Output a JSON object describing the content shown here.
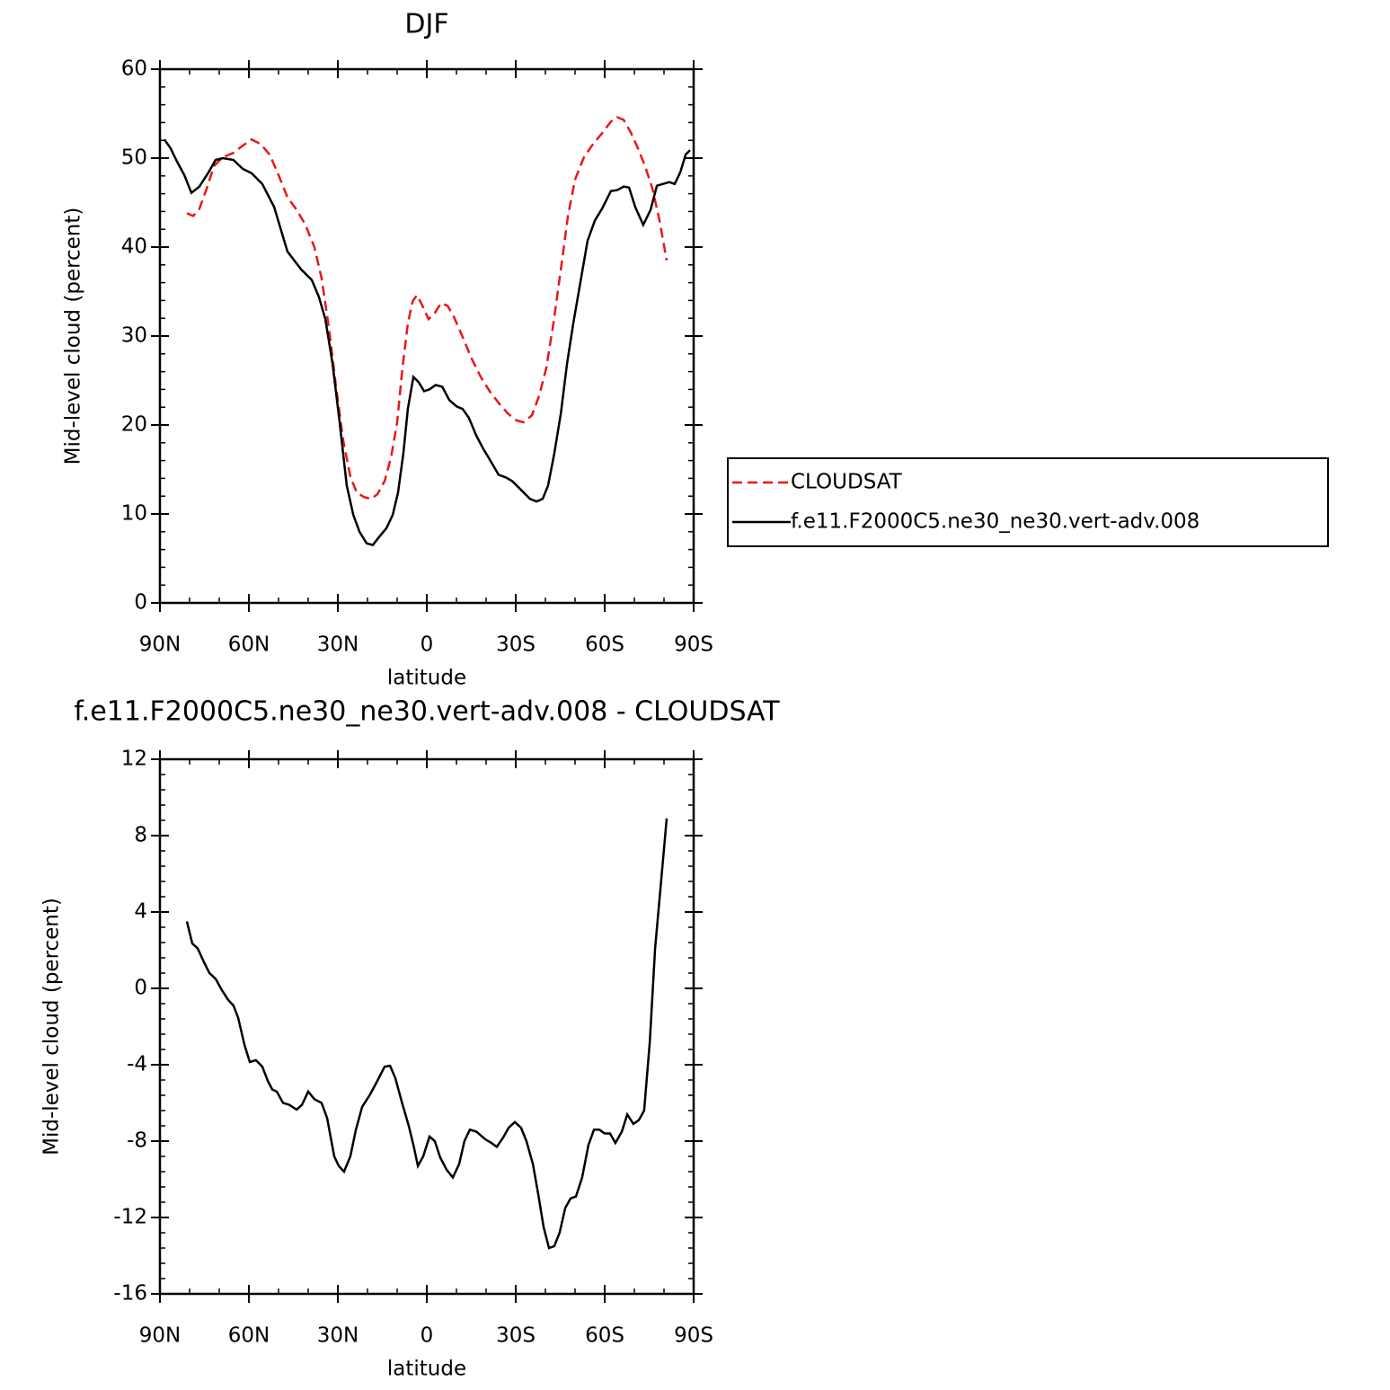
{
  "chart_data": [
    {
      "type": "line",
      "title": "DJF",
      "xlabel": "latitude",
      "ylabel": "Mid-level cloud (percent)",
      "xlim": [
        90,
        -90
      ],
      "xticks": [
        {
          "value": 90,
          "label": "90N"
        },
        {
          "value": 60,
          "label": "60N"
        },
        {
          "value": 30,
          "label": "30N"
        },
        0,
        {
          "value": -30,
          "label": "30S"
        },
        {
          "value": -60,
          "label": "60S"
        },
        {
          "value": -90,
          "label": "90S"
        }
      ],
      "ylim": [
        0,
        60
      ],
      "yticks": [
        0,
        10,
        20,
        30,
        40,
        50,
        60
      ],
      "grid": false,
      "legend": "right",
      "series": [
        {
          "name": "CLOUDSAT",
          "color": "#e8171a",
          "dash": "dashed",
          "x": [
            80.9,
            78.8,
            76.7,
            74.2,
            71.8,
            68.8,
            65.2,
            62.1,
            59.1,
            56.1,
            53.0,
            50.0,
            47.0,
            43.9,
            40.9,
            37.9,
            35.5,
            33.0,
            30.6,
            28.2,
            25.8,
            23.6,
            21.2,
            18.8,
            16.7,
            14.2,
            12.1,
            10.0,
            8.2,
            6.4,
            4.8,
            3.3,
            1.5,
            -0.6,
            -2.7,
            -4.8,
            -7.0,
            -9.1,
            -12.1,
            -15.2,
            -18.2,
            -21.2,
            -24.2,
            -27.3,
            -30.3,
            -32.7,
            -35.5,
            -37.9,
            -40.3,
            -42.7,
            -45.2,
            -47.6,
            -50.0,
            -53.0,
            -56.1,
            -59.1,
            -62.1,
            -64.2,
            -66.4,
            -68.8,
            -71.2,
            -73.6,
            -76.1,
            -78.5,
            -80.9
          ],
          "values": [
            43.8,
            43.5,
            44.3,
            46.6,
            49.1,
            50.1,
            50.6,
            51.4,
            52.1,
            51.6,
            50.4,
            48.1,
            45.6,
            44.2,
            42.5,
            40.0,
            36.5,
            30.9,
            24.3,
            18.3,
            14.2,
            12.4,
            11.9,
            11.7,
            12.2,
            13.7,
            16.3,
            20.3,
            26.4,
            31.4,
            33.9,
            34.6,
            33.4,
            31.9,
            32.6,
            33.7,
            33.4,
            32.2,
            29.9,
            27.4,
            25.4,
            23.8,
            22.5,
            21.3,
            20.5,
            20.3,
            21.1,
            23.3,
            26.4,
            31.4,
            37.5,
            43.5,
            47.6,
            50.1,
            51.6,
            52.8,
            54.1,
            54.6,
            54.3,
            52.9,
            51.1,
            49.1,
            46.6,
            43.0,
            38.5
          ]
        },
        {
          "name": "f.e11.F2000C5.ne30_ne30.vert-adv.008",
          "color": "#000000",
          "dash": "solid",
          "x": [
            88.5,
            86.4,
            84.2,
            81.8,
            79.4,
            76.7,
            73.6,
            71.2,
            68.8,
            65.2,
            62.1,
            59.1,
            55.5,
            51.5,
            47.0,
            42.4,
            38.8,
            36.4,
            34.2,
            31.8,
            29.4,
            27.0,
            24.8,
            22.7,
            20.3,
            18.2,
            16.1,
            13.6,
            11.5,
            9.7,
            7.9,
            6.4,
            4.5,
            2.7,
            0.9,
            -0.9,
            -3.0,
            -5.2,
            -7.6,
            -10.0,
            -12.1,
            -14.2,
            -16.7,
            -19.1,
            -21.8,
            -24.2,
            -26.7,
            -28.8,
            -31.2,
            -34.8,
            -37.0,
            -39.1,
            -40.9,
            -43.0,
            -45.2,
            -47.3,
            -49.4,
            -51.5,
            -54.2,
            -56.7,
            -59.1,
            -62.1,
            -64.2,
            -66.4,
            -68.2,
            -70.3,
            -73.0,
            -75.5,
            -77.6,
            -79.7,
            -81.8,
            -83.6,
            -85.5,
            -87.3,
            -88.8
          ],
          "values": [
            52.1,
            51.1,
            49.6,
            48.1,
            46.1,
            46.8,
            48.4,
            49.8,
            50.0,
            49.8,
            48.8,
            48.3,
            47.1,
            44.5,
            39.5,
            37.5,
            36.3,
            34.4,
            31.9,
            26.9,
            20.3,
            13.2,
            9.9,
            8.0,
            6.7,
            6.5,
            7.4,
            8.4,
            9.9,
            12.4,
            16.8,
            21.8,
            25.4,
            24.8,
            23.8,
            24.0,
            24.5,
            24.3,
            22.8,
            22.1,
            21.8,
            20.8,
            18.8,
            17.3,
            15.8,
            14.4,
            14.1,
            13.7,
            12.9,
            11.7,
            11.4,
            11.7,
            13.2,
            16.8,
            21.3,
            26.9,
            31.4,
            35.5,
            40.7,
            43.0,
            44.3,
            46.3,
            46.4,
            46.8,
            46.7,
            44.5,
            42.5,
            44.2,
            46.9,
            47.1,
            47.3,
            47.1,
            48.4,
            50.4,
            50.9
          ]
        }
      ]
    },
    {
      "type": "line",
      "title": "f.e11.F2000C5.ne30_ne30.vert-adv.008 - CLOUDSAT",
      "xlabel": "latitude",
      "ylabel": "Mid-level cloud (percent)",
      "xlim": [
        90,
        -90
      ],
      "xticks": [
        {
          "value": 90,
          "label": "90N"
        },
        {
          "value": 60,
          "label": "60N"
        },
        {
          "value": 30,
          "label": "30N"
        },
        0,
        {
          "value": -30,
          "label": "30S"
        },
        {
          "value": -60,
          "label": "60S"
        },
        {
          "value": -90,
          "label": "90S"
        }
      ],
      "ylim": [
        -16,
        12
      ],
      "yticks": [
        -16,
        -12,
        -8,
        -4,
        0,
        4,
        8,
        12
      ],
      "grid": false,
      "series": [
        {
          "color": "#000000",
          "dash": "solid",
          "x": [
            80.9,
            79.1,
            77.3,
            75.2,
            73.3,
            71.2,
            69.1,
            67.0,
            65.2,
            63.6,
            61.5,
            59.7,
            57.6,
            55.5,
            53.6,
            52.1,
            50.6,
            48.5,
            46.4,
            43.9,
            42.1,
            40.0,
            37.9,
            35.5,
            33.6,
            31.2,
            29.7,
            27.9,
            25.8,
            23.9,
            21.8,
            19.1,
            16.7,
            14.2,
            12.4,
            10.6,
            8.5,
            6.1,
            4.5,
            3.0,
            1.2,
            -0.9,
            -2.7,
            -4.5,
            -6.7,
            -8.8,
            -10.9,
            -12.7,
            -14.5,
            -16.7,
            -19.7,
            -21.8,
            -23.6,
            -25.8,
            -27.6,
            -29.7,
            -31.8,
            -33.6,
            -35.8,
            -37.6,
            -39.4,
            -41.2,
            -43.0,
            -44.8,
            -46.7,
            -48.5,
            -50.3,
            -52.4,
            -54.5,
            -56.4,
            -58.2,
            -60.0,
            -61.8,
            -63.6,
            -65.8,
            -67.6,
            -69.7,
            -71.5,
            -73.3,
            -75.2,
            -77.0,
            -78.8,
            -80.9
          ],
          "values": [
            3.5,
            2.35,
            2.1,
            1.4,
            0.8,
            0.5,
            -0.1,
            -0.6,
            -0.9,
            -1.55,
            -2.96,
            -3.86,
            -3.76,
            -4.1,
            -4.85,
            -5.3,
            -5.4,
            -6.0,
            -6.1,
            -6.35,
            -6.1,
            -5.4,
            -5.8,
            -6.0,
            -6.8,
            -8.8,
            -9.3,
            -9.6,
            -8.8,
            -7.4,
            -6.2,
            -5.55,
            -4.85,
            -4.1,
            -4.05,
            -4.7,
            -5.9,
            -7.2,
            -8.2,
            -9.3,
            -8.8,
            -7.76,
            -8.0,
            -8.85,
            -9.5,
            -9.9,
            -9.2,
            -8.0,
            -7.4,
            -7.5,
            -7.9,
            -8.1,
            -8.3,
            -7.8,
            -7.3,
            -7.0,
            -7.3,
            -8.0,
            -9.2,
            -10.8,
            -12.5,
            -13.6,
            -13.5,
            -12.8,
            -11.5,
            -11.0,
            -10.9,
            -9.9,
            -8.2,
            -7.4,
            -7.4,
            -7.6,
            -7.6,
            -8.1,
            -7.5,
            -6.6,
            -7.1,
            -6.9,
            -6.4,
            -2.8,
            2.1,
            5.2,
            8.9
          ]
        }
      ]
    }
  ]
}
